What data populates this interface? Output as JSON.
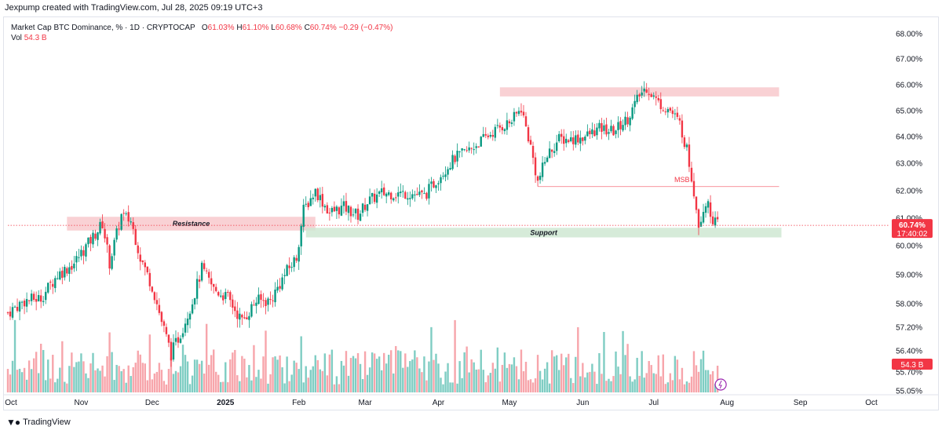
{
  "header": {
    "created_by": "Jexpump created with TradingView.com, Jul 28, 2025 09:19 UTC+3"
  },
  "legend": {
    "symbol": "Market Cap BTC Dominance, % · 1D · CRYPTOCAP",
    "o_label": "O",
    "o_value": "61.03%",
    "h_label": "H",
    "h_value": "61.10%",
    "l_label": "L",
    "l_value": "60.68%",
    "c_label": "C",
    "c_value": "60.74%",
    "change": "−0.29 (−0.47%)",
    "vol_label": "Vol",
    "vol_value": "54.3 B"
  },
  "footer": {
    "brand": "TradingView"
  },
  "colors": {
    "up": "#089981",
    "down": "#f23645",
    "vol_up": "#7fcdc3",
    "vol_down": "#f7a5ab",
    "resistance": "#f8c9cc",
    "support": "#cfe8d2",
    "grid": "#ffffff"
  },
  "chart_data": {
    "type": "candlestick",
    "title": "Market Cap BTC Dominance, % · 1D · CRYPTOCAP",
    "y_ticks": [
      "68.00%",
      "67.00%",
      "66.00%",
      "65.00%",
      "64.00%",
      "63.00%",
      "62.00%",
      "61.00%",
      "60.00%",
      "59.00%",
      "58.00%",
      "57.20%",
      "56.40%",
      "55.70%",
      "55.05%"
    ],
    "x_ticks": [
      "Oct",
      "Nov",
      "Dec",
      "2025",
      "Feb",
      "Mar",
      "Apr",
      "May",
      "Jun",
      "Jul",
      "Aug",
      "Sep",
      "Oct"
    ],
    "x_range": [
      "2024-10-01",
      "2025-10-01"
    ],
    "y_range": [
      55.05,
      68.3
    ],
    "last_price_label": "60.74%",
    "countdown_label": "17:40:02",
    "volume_label": "54.3 B",
    "approx_close_path": [
      [
        "2024-10-01",
        57.7
      ],
      [
        "2024-10-08",
        58.1
      ],
      [
        "2024-10-15",
        58.2
      ],
      [
        "2024-10-22",
        59.0
      ],
      [
        "2024-10-29",
        59.4
      ],
      [
        "2024-11-05",
        60.2
      ],
      [
        "2024-11-10",
        60.8
      ],
      [
        "2024-11-13",
        59.4
      ],
      [
        "2024-11-18",
        61.1
      ],
      [
        "2024-11-22",
        60.9
      ],
      [
        "2024-11-26",
        59.6
      ],
      [
        "2024-12-01",
        58.6
      ],
      [
        "2024-12-05",
        57.4
      ],
      [
        "2024-12-09",
        56.3
      ],
      [
        "2024-12-13",
        57.0
      ],
      [
        "2024-12-18",
        58.1
      ],
      [
        "2024-12-22",
        59.2
      ],
      [
        "2024-12-27",
        58.5
      ],
      [
        "2025-01-02",
        58.2
      ],
      [
        "2025-01-08",
        57.4
      ],
      [
        "2025-01-14",
        58.1
      ],
      [
        "2025-01-20",
        58.1
      ],
      [
        "2025-01-26",
        59.0
      ],
      [
        "2025-01-31",
        59.6
      ],
      [
        "2025-02-03",
        61.3
      ],
      [
        "2025-02-08",
        62.0
      ],
      [
        "2025-02-14",
        61.2
      ],
      [
        "2025-02-20",
        61.4
      ],
      [
        "2025-02-26",
        61.1
      ],
      [
        "2025-03-02",
        61.6
      ],
      [
        "2025-03-08",
        61.9
      ],
      [
        "2025-03-14",
        61.9
      ],
      [
        "2025-03-20",
        61.9
      ],
      [
        "2025-03-26",
        61.8
      ],
      [
        "2025-04-02",
        62.6
      ],
      [
        "2025-04-08",
        63.2
      ],
      [
        "2025-04-14",
        63.5
      ],
      [
        "2025-04-20",
        63.9
      ],
      [
        "2025-04-26",
        64.3
      ],
      [
        "2025-05-02",
        64.6
      ],
      [
        "2025-05-06",
        65.1
      ],
      [
        "2025-05-10",
        63.6
      ],
      [
        "2025-05-13",
        62.3
      ],
      [
        "2025-05-17",
        63.3
      ],
      [
        "2025-05-22",
        63.9
      ],
      [
        "2025-05-27",
        63.9
      ],
      [
        "2025-06-02",
        64.0
      ],
      [
        "2025-06-08",
        64.3
      ],
      [
        "2025-06-14",
        64.2
      ],
      [
        "2025-06-20",
        64.7
      ],
      [
        "2025-06-25",
        65.6
      ],
      [
        "2025-06-28",
        65.9
      ],
      [
        "2025-07-03",
        65.3
      ],
      [
        "2025-07-08",
        65.0
      ],
      [
        "2025-07-12",
        64.5
      ],
      [
        "2025-07-15",
        63.5
      ],
      [
        "2025-07-18",
        62.0
      ],
      [
        "2025-07-20",
        60.8
      ],
      [
        "2025-07-23",
        61.6
      ],
      [
        "2025-07-26",
        61.0
      ],
      [
        "2025-07-28",
        60.74
      ]
    ],
    "annotations": [
      {
        "type": "zone",
        "label": "Resistance",
        "from": "2024-10-26",
        "to": "2025-02-08",
        "y_top": 61.05,
        "y_bottom": 60.55
      },
      {
        "type": "zone",
        "label": "Support",
        "from": "2025-02-04",
        "to": "2025-08-24",
        "y_top": 60.65,
        "y_bottom": 60.3
      },
      {
        "type": "zone",
        "label": "",
        "from": "2025-04-27",
        "to": "2025-08-23",
        "y_top": 65.9,
        "y_bottom": 65.55
      },
      {
        "type": "hline",
        "label": "MSB",
        "from": "2025-05-13",
        "to": "2025-08-23",
        "y": 62.15
      }
    ],
    "legend_position": "top-left",
    "grid": false
  }
}
